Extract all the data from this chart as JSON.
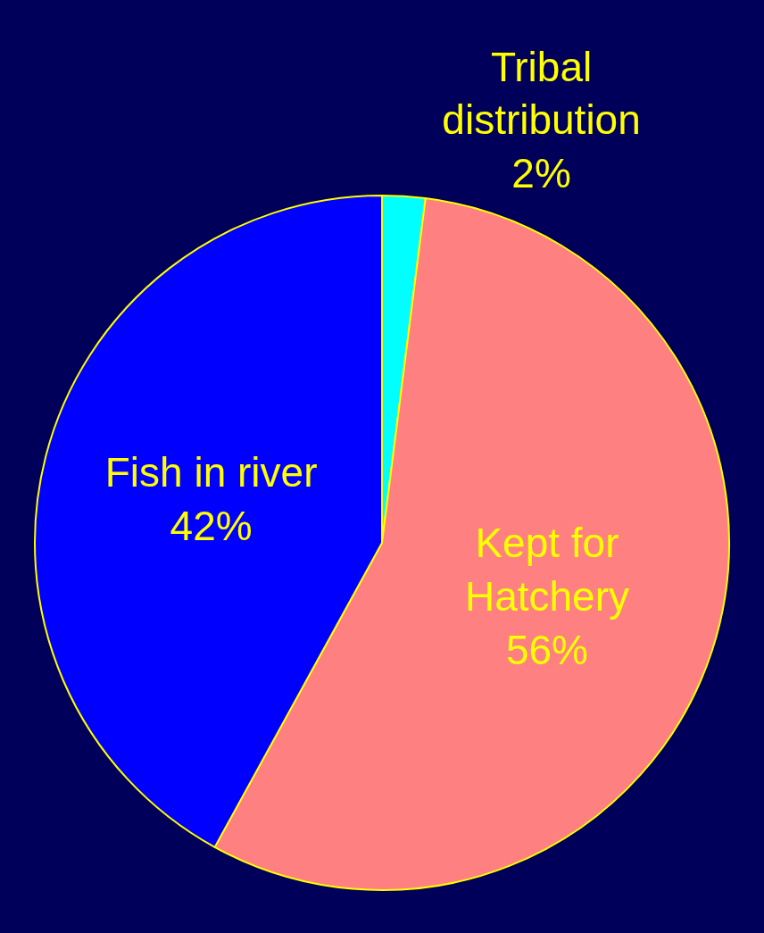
{
  "chart_data": {
    "type": "pie",
    "categories": [
      "Tribal\ndistribution",
      "Kept for\nHatchery",
      "Fish in river"
    ],
    "values": [
      2,
      56,
      42
    ],
    "value_labels": [
      "2%",
      "56%",
      "42%"
    ],
    "colors": [
      "#00ffff",
      "#ff8080",
      "#0000ff"
    ],
    "legend": false
  }
}
